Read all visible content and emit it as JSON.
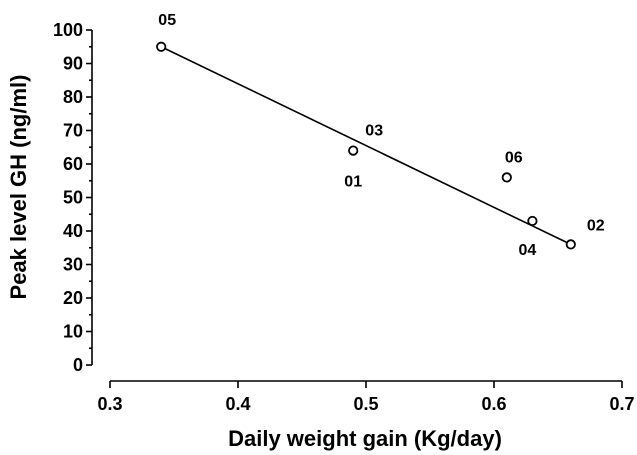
{
  "chart_data": {
    "type": "scatter",
    "title": "",
    "xlabel": "Daily weight gain (Kg/day)",
    "ylabel": "Peak level GH (ng/ml)",
    "xlim": [
      0.3,
      0.7
    ],
    "ylim": [
      0,
      100
    ],
    "x_ticks": [
      "0.3",
      "0.4",
      "0.5",
      "0.6",
      "0.7"
    ],
    "y_ticks": [
      "0",
      "10",
      "20",
      "30",
      "40",
      "50",
      "60",
      "70",
      "80",
      "90",
      "100"
    ],
    "grid": false,
    "points": [
      {
        "label": "05",
        "x": 0.34,
        "y": 95
      },
      {
        "label": "01",
        "x": 0.49,
        "y": 64
      },
      {
        "label": "03",
        "x": 0.49,
        "y": 64
      },
      {
        "label": "06",
        "x": 0.61,
        "y": 56
      },
      {
        "label": "04",
        "x": 0.63,
        "y": 43
      },
      {
        "label": "02",
        "x": 0.66,
        "y": 36
      }
    ],
    "fit_line": {
      "x": [
        0.34,
        0.66
      ],
      "y": [
        95,
        36
      ]
    }
  }
}
